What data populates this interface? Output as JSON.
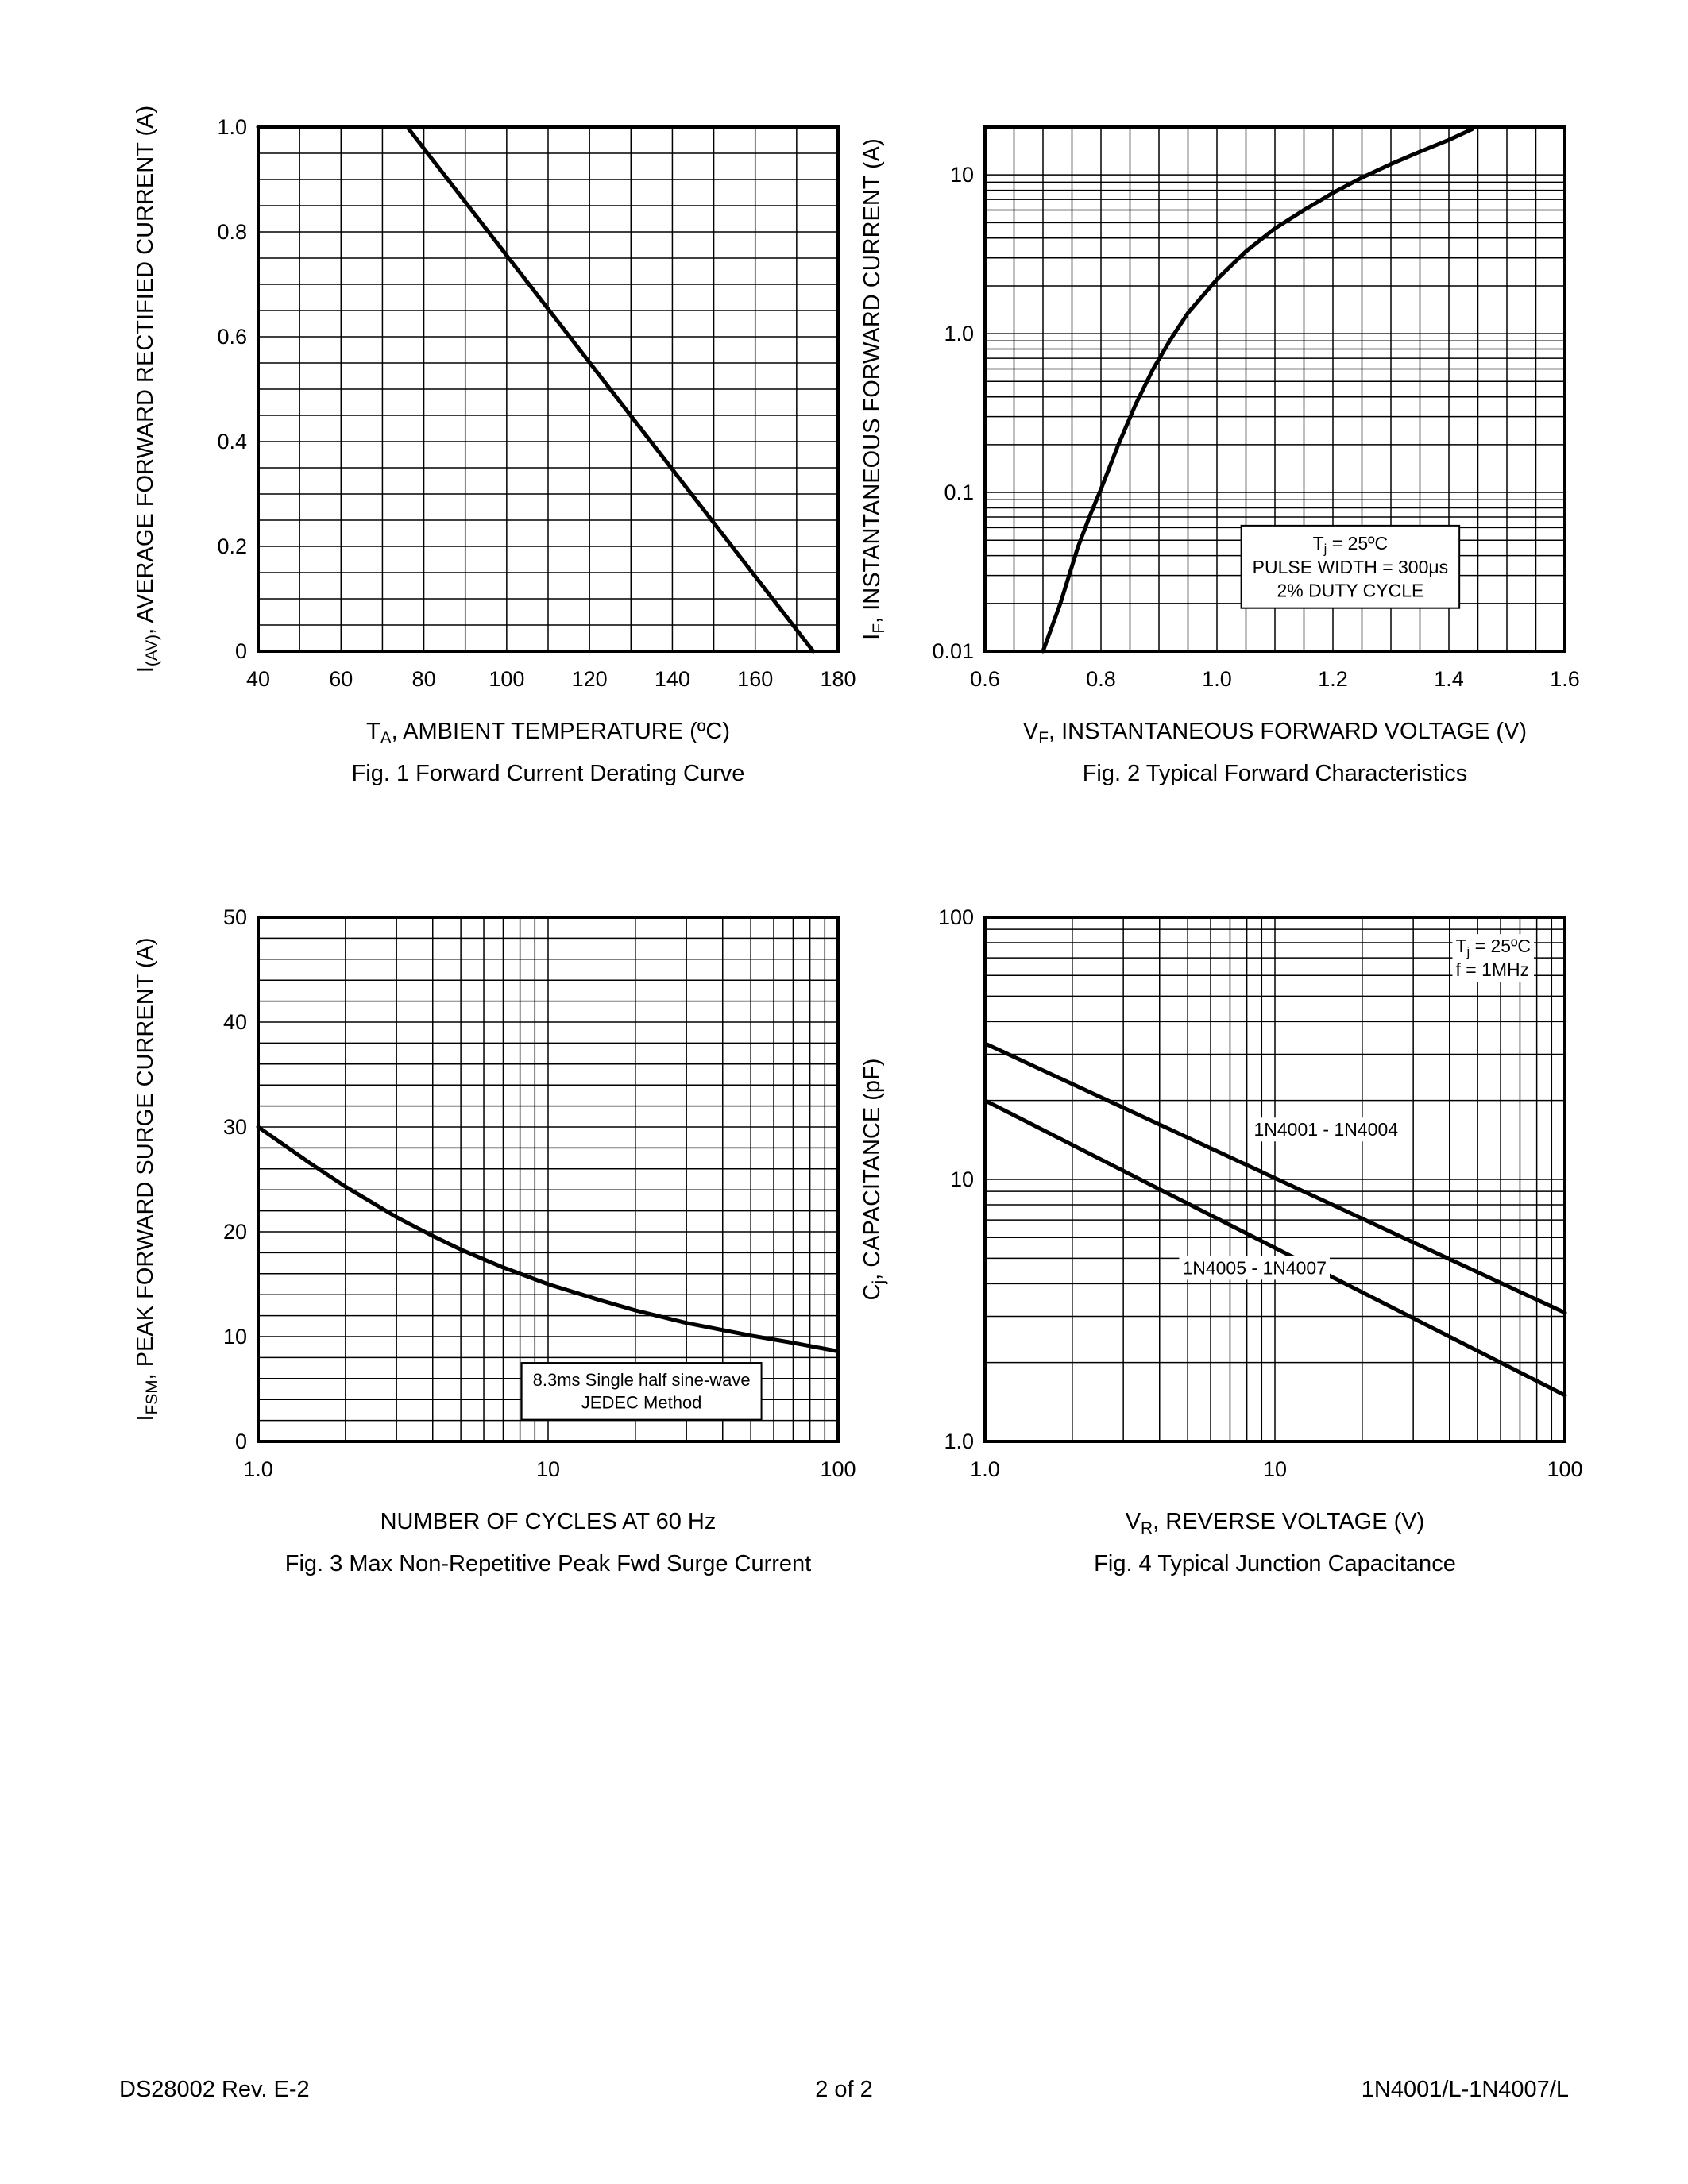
{
  "footer": {
    "left": "DS28002 Rev. E-2",
    "center": "2 of 2",
    "right": "1N4001/L-1N4007/L"
  },
  "chart_data": [
    {
      "id": "fig1",
      "type": "line",
      "caption": "Fig. 1 Forward Current Derating Curve",
      "grid": true,
      "x_axis": {
        "scale": "linear",
        "min": 40,
        "max": 180,
        "minor_step": 10,
        "title": "T_{A}, AMBIENT TEMPERATURE (ºC)",
        "ticks": [
          [
            40,
            "40"
          ],
          [
            60,
            "60"
          ],
          [
            80,
            "80"
          ],
          [
            100,
            "100"
          ],
          [
            120,
            "120"
          ],
          [
            140,
            "140"
          ],
          [
            160,
            "160"
          ],
          [
            180,
            "180"
          ]
        ]
      },
      "y_axis": {
        "scale": "linear",
        "min": 0,
        "max": 1.0,
        "minor_step": 0.05,
        "title": "I_{(AV)}, AVERAGE FORWARD RECTIFIED CURRENT (A)",
        "ticks": [
          [
            0,
            "0"
          ],
          [
            0.2,
            "0.2"
          ],
          [
            0.4,
            "0.4"
          ],
          [
            0.6,
            "0.6"
          ],
          [
            0.8,
            "0.8"
          ],
          [
            1.0,
            "1.0"
          ]
        ]
      },
      "series": [
        {
          "name": "derating-curve",
          "points": [
            [
              40,
              1.0
            ],
            [
              76,
              1.0
            ],
            [
              174,
              0
            ]
          ]
        }
      ],
      "annotations": []
    },
    {
      "id": "fig2",
      "type": "line",
      "caption": "Fig. 2 Typical Forward Characteristics",
      "grid": true,
      "x_axis": {
        "scale": "linear",
        "min": 0.6,
        "max": 1.6,
        "minor_step": 0.05,
        "title": "V_{F}, INSTANTANEOUS FORWARD VOLTAGE (V)",
        "ticks": [
          [
            0.6,
            "0.6"
          ],
          [
            0.8,
            "0.8"
          ],
          [
            1.0,
            "1.0"
          ],
          [
            1.2,
            "1.2"
          ],
          [
            1.4,
            "1.4"
          ],
          [
            1.6,
            "1.6"
          ]
        ]
      },
      "y_axis": {
        "scale": "log",
        "min": 0.01,
        "max": 20,
        "title": "I_{F}, INSTANTANEOUS FORWARD CURRENT (A)",
        "ticks": [
          [
            0.01,
            "0.01"
          ],
          [
            0.1,
            "0.1"
          ],
          [
            1,
            "1.0"
          ],
          [
            10,
            "10"
          ]
        ]
      },
      "series": [
        {
          "name": "forward-characteristic",
          "points": [
            [
              0.7,
              0.01
            ],
            [
              0.73,
              0.02
            ],
            [
              0.76,
              0.045
            ],
            [
              0.78,
              0.07
            ],
            [
              0.8,
              0.105
            ],
            [
              0.83,
              0.2
            ],
            [
              0.86,
              0.36
            ],
            [
              0.89,
              0.6
            ],
            [
              0.92,
              0.92
            ],
            [
              0.95,
              1.35
            ],
            [
              1.0,
              2.2
            ],
            [
              1.05,
              3.3
            ],
            [
              1.1,
              4.6
            ],
            [
              1.15,
              6.0
            ],
            [
              1.2,
              7.7
            ],
            [
              1.25,
              9.6
            ],
            [
              1.3,
              11.7
            ],
            [
              1.35,
              14.0
            ],
            [
              1.4,
              16.6
            ],
            [
              1.44,
              19.4
            ]
          ]
        }
      ],
      "annotations": [
        {
          "x": 1.23,
          "y": 0.034,
          "anchor": "middle",
          "box": true,
          "font_size": 23,
          "lines": [
            "T_{j} = 25ºC",
            "PULSE WIDTH = 300μs",
            "2% DUTY CYCLE"
          ]
        }
      ]
    },
    {
      "id": "fig3",
      "type": "line",
      "caption": "Fig. 3  Max Non-Repetitive Peak Fwd Surge Current",
      "grid": true,
      "x_axis": {
        "scale": "log",
        "min": 1,
        "max": 100,
        "title": "NUMBER OF CYCLES AT 60 Hz",
        "ticks": [
          [
            1,
            "1.0"
          ],
          [
            10,
            "10"
          ],
          [
            100,
            "100"
          ]
        ]
      },
      "y_axis": {
        "scale": "linear",
        "min": 0,
        "max": 50,
        "minor_step": 2,
        "title": "I_{FSM}, PEAK FORWARD SURGE CURRENT (A)",
        "ticks": [
          [
            0,
            "0"
          ],
          [
            10,
            "10"
          ],
          [
            20,
            "20"
          ],
          [
            30,
            "30"
          ],
          [
            40,
            "40"
          ],
          [
            50,
            "50"
          ]
        ]
      },
      "series": [
        {
          "name": "surge-current",
          "points": [
            [
              1,
              30
            ],
            [
              1.5,
              26.6
            ],
            [
              2,
              24.3
            ],
            [
              3,
              21.4
            ],
            [
              4,
              19.6
            ],
            [
              5,
              18.3
            ],
            [
              7,
              16.6
            ],
            [
              10,
              15.0
            ],
            [
              15,
              13.5
            ],
            [
              20,
              12.5
            ],
            [
              30,
              11.3
            ],
            [
              50,
              10.1
            ],
            [
              70,
              9.4
            ],
            [
              100,
              8.6
            ]
          ]
        }
      ],
      "annotations": [
        {
          "x": 21,
          "y": 4.8,
          "anchor": "middle",
          "box": true,
          "font_size": 22,
          "lines": [
            "8.3ms Single half sine-wave",
            "JEDEC Method"
          ]
        }
      ]
    },
    {
      "id": "fig4",
      "type": "line",
      "caption": "Fig. 4 Typical Junction Capacitance",
      "grid": true,
      "x_axis": {
        "scale": "log",
        "min": 1,
        "max": 100,
        "title": "V_{R}, REVERSE VOLTAGE (V)",
        "ticks": [
          [
            1,
            "1.0"
          ],
          [
            10,
            "10"
          ],
          [
            100,
            "100"
          ]
        ]
      },
      "y_axis": {
        "scale": "log",
        "min": 1,
        "max": 100,
        "title": "C_{j}, CAPACITANCE (pF)",
        "ticks": [
          [
            1,
            "1.0"
          ],
          [
            10,
            "10"
          ],
          [
            100,
            "100"
          ]
        ]
      },
      "series": [
        {
          "name": "1N4001-1N4004",
          "points": [
            [
              1,
              33
            ],
            [
              100,
              3.1
            ]
          ]
        },
        {
          "name": "1N4005-1N4007",
          "points": [
            [
              1,
              20
            ],
            [
              100,
              1.5
            ]
          ]
        }
      ],
      "annotations": [
        {
          "x": 42,
          "y": 70,
          "anchor": "start",
          "box": false,
          "font_size": 23,
          "lines": [
            "T_{j} = 25ºC",
            "f = 1MHz"
          ]
        },
        {
          "x": 15,
          "y": 15.5,
          "anchor": "middle",
          "box": false,
          "font_size": 23,
          "lines": [
            "1N4001 - 1N4004"
          ]
        },
        {
          "x": 8.5,
          "y": 4.6,
          "anchor": "middle",
          "box": false,
          "font_size": 23,
          "lines": [
            "1N4005 - 1N4007"
          ]
        }
      ]
    }
  ]
}
